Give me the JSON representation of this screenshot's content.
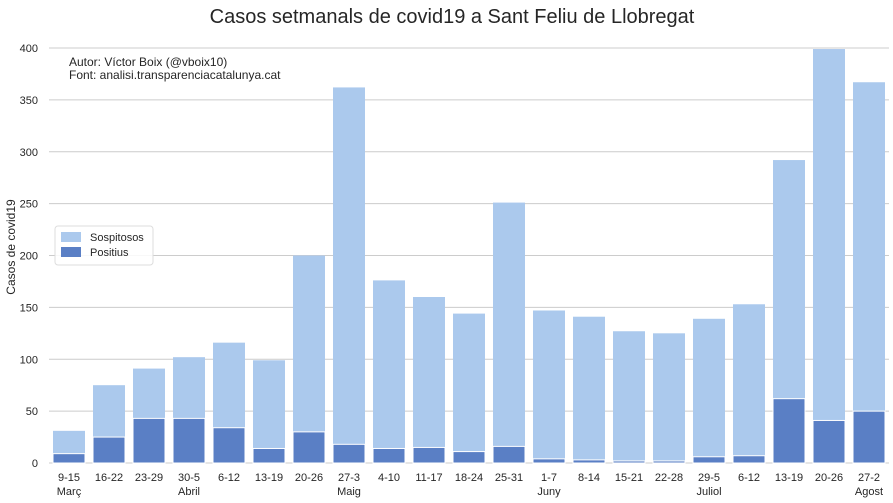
{
  "chart_data": {
    "type": "bar",
    "title": "Casos setmanals de covid19 a Sant Feliu de Llobregat",
    "xlabel": "",
    "ylabel": "Casos de covid19",
    "ylim": [
      0,
      400
    ],
    "yticks": [
      0,
      50,
      100,
      150,
      200,
      250,
      300,
      350,
      400
    ],
    "grid": "horizontal",
    "stacked": false,
    "legend_position": "center-left",
    "annotations": [
      "Autor: Víctor Boix (@vboix10)",
      "Font: analisi.transparenciacatalunya.cat"
    ],
    "categories": [
      "9-15",
      "16-22",
      "23-29",
      "30-5",
      "6-12",
      "13-19",
      "20-26",
      "27-3",
      "4-10",
      "11-17",
      "18-24",
      "25-31",
      "1-7",
      "8-14",
      "15-21",
      "22-28",
      "29-5",
      "6-12",
      "13-19",
      "20-26",
      "27-2"
    ],
    "month_labels": [
      "Març",
      "",
      "",
      "Abril",
      "",
      "",
      "",
      "Maig",
      "",
      "",
      "",
      "",
      "Juny",
      "",
      "",
      "",
      "Juliol",
      "",
      "",
      "",
      "Agost"
    ],
    "series": [
      {
        "name": "Sospitosos",
        "color": "#abc9ed",
        "values": [
          31,
          75,
          91,
          102,
          116,
          99,
          200,
          362,
          176,
          160,
          144,
          251,
          147,
          141,
          127,
          125,
          139,
          153,
          292,
          399,
          367
        ]
      },
      {
        "name": "Positius",
        "color": "#5a7fc5",
        "values": [
          9,
          25,
          43,
          43,
          34,
          14,
          30,
          18,
          14,
          15,
          11,
          16,
          4,
          3,
          2,
          2,
          6,
          7,
          62,
          41,
          50
        ]
      }
    ]
  }
}
